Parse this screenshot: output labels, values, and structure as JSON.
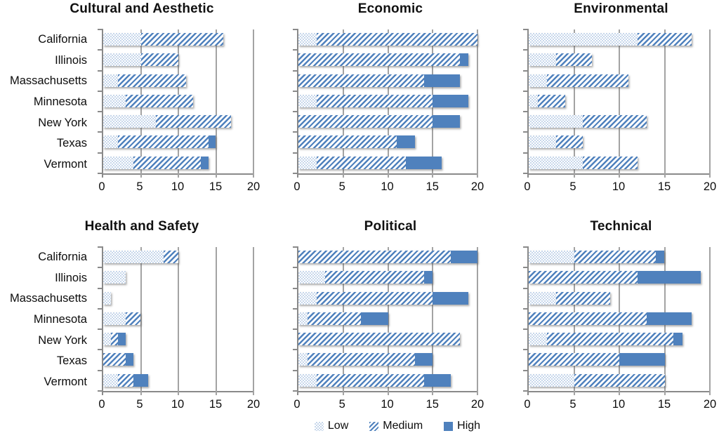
{
  "colors": {
    "accent_blue": "#4f81bd",
    "pattern_light_blue": "#c7d7eb",
    "grid_gray": "#a3a3a3",
    "axis_gray": "#8a8a8a",
    "text": "#111111",
    "background": "#ffffff"
  },
  "legend": {
    "items": [
      {
        "label": "Low",
        "pattern": "low"
      },
      {
        "label": "Medium",
        "pattern": "medium"
      },
      {
        "label": "High",
        "pattern": "high"
      }
    ]
  },
  "chart_data": [
    {
      "type": "bar",
      "orientation": "horizontal",
      "stacked": true,
      "title": "Cultural and Aesthetic",
      "categories": [
        "California",
        "Illinois",
        "Massachusetts",
        "Minnesota",
        "New York",
        "Texas",
        "Vermont"
      ],
      "series": [
        {
          "name": "Low",
          "values": [
            5,
            5,
            2,
            3,
            7,
            2,
            4
          ]
        },
        {
          "name": "Medium",
          "values": [
            11,
            5,
            9,
            9,
            10,
            12,
            9
          ]
        },
        {
          "name": "High",
          "values": [
            0,
            0,
            0,
            0,
            0,
            1,
            1
          ]
        }
      ],
      "xlim": [
        0,
        20
      ],
      "xticks": [
        "0",
        "5",
        "10",
        "15",
        "20"
      ],
      "grid": true,
      "show_category_labels": true
    },
    {
      "type": "bar",
      "orientation": "horizontal",
      "stacked": true,
      "title": "Economic",
      "categories": [
        "California",
        "Illinois",
        "Massachusetts",
        "Minnesota",
        "New York",
        "Texas",
        "Vermont"
      ],
      "series": [
        {
          "name": "Low",
          "values": [
            2,
            0,
            0,
            2,
            0,
            0,
            2
          ]
        },
        {
          "name": "Medium",
          "values": [
            18,
            18,
            14,
            13,
            15,
            11,
            10
          ]
        },
        {
          "name": "High",
          "values": [
            0,
            1,
            4,
            4,
            3,
            2,
            4
          ]
        }
      ],
      "xlim": [
        0,
        20
      ],
      "xticks": [
        "0",
        "5",
        "10",
        "15",
        "20"
      ],
      "grid": true,
      "show_category_labels": false
    },
    {
      "type": "bar",
      "orientation": "horizontal",
      "stacked": true,
      "title": "Environmental",
      "categories": [
        "California",
        "Illinois",
        "Massachusetts",
        "Minnesota",
        "New York",
        "Texas",
        "Vermont"
      ],
      "series": [
        {
          "name": "Low",
          "values": [
            12,
            3,
            2,
            1,
            6,
            3,
            6
          ]
        },
        {
          "name": "Medium",
          "values": [
            6,
            4,
            9,
            3,
            7,
            3,
            6
          ]
        },
        {
          "name": "High",
          "values": [
            0,
            0,
            0,
            0,
            0,
            0,
            0
          ]
        }
      ],
      "xlim": [
        0,
        20
      ],
      "xticks": [
        "0",
        "5",
        "10",
        "15",
        "20"
      ],
      "grid": true,
      "show_category_labels": false
    },
    {
      "type": "bar",
      "orientation": "horizontal",
      "stacked": true,
      "title": "Health and Safety",
      "categories": [
        "California",
        "Illinois",
        "Massachusetts",
        "Minnesota",
        "New York",
        "Texas",
        "Vermont"
      ],
      "series": [
        {
          "name": "Low",
          "values": [
            8,
            3,
            1,
            3,
            1,
            0,
            2
          ]
        },
        {
          "name": "Medium",
          "values": [
            2,
            0,
            0,
            2,
            1,
            3,
            2
          ]
        },
        {
          "name": "High",
          "values": [
            0,
            0,
            0,
            0,
            1,
            1,
            2
          ]
        }
      ],
      "xlim": [
        0,
        20
      ],
      "xticks": [
        "0",
        "5",
        "10",
        "15",
        "20"
      ],
      "grid": true,
      "show_category_labels": true
    },
    {
      "type": "bar",
      "orientation": "horizontal",
      "stacked": true,
      "title": "Political",
      "categories": [
        "California",
        "Illinois",
        "Massachusetts",
        "Minnesota",
        "New York",
        "Texas",
        "Vermont"
      ],
      "series": [
        {
          "name": "Low",
          "values": [
            0,
            3,
            2,
            1,
            0,
            1,
            2
          ]
        },
        {
          "name": "Medium",
          "values": [
            17,
            11,
            13,
            6,
            18,
            12,
            12
          ]
        },
        {
          "name": "High",
          "values": [
            3,
            1,
            4,
            3,
            0,
            2,
            3
          ]
        }
      ],
      "xlim": [
        0,
        20
      ],
      "xticks": [
        "0",
        "5",
        "10",
        "15",
        "20"
      ],
      "grid": true,
      "show_category_labels": false
    },
    {
      "type": "bar",
      "orientation": "horizontal",
      "stacked": true,
      "title": "Technical",
      "categories": [
        "California",
        "Illinois",
        "Massachusetts",
        "Minnesota",
        "New York",
        "Texas",
        "Vermont"
      ],
      "series": [
        {
          "name": "Low",
          "values": [
            5,
            0,
            3,
            0,
            2,
            0,
            5
          ]
        },
        {
          "name": "Medium",
          "values": [
            9,
            12,
            6,
            13,
            14,
            10,
            10
          ]
        },
        {
          "name": "High",
          "values": [
            1,
            7,
            0,
            5,
            1,
            5,
            0
          ]
        }
      ],
      "xlim": [
        0,
        20
      ],
      "xticks": [
        "0",
        "5",
        "10",
        "15",
        "20"
      ],
      "grid": true,
      "show_category_labels": false
    }
  ]
}
